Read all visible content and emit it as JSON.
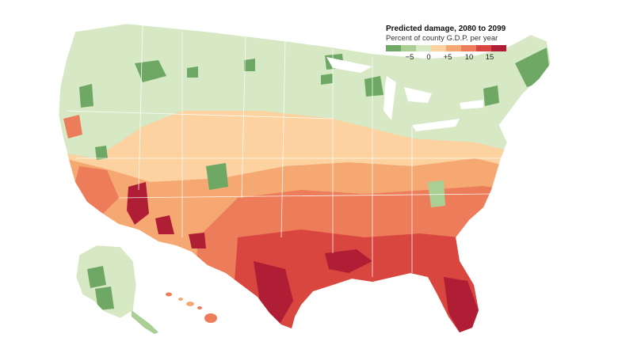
{
  "legend": {
    "title": "Predicted damage, 2080 to 2099",
    "subtitle": "Percent of county G.D.P. per year",
    "ticks": [
      "−5",
      "0",
      "+5",
      "10",
      "15"
    ],
    "scale_colors": [
      "#6ea864",
      "#a9cf95",
      "#d6e8c4",
      "#fbd2a0",
      "#f6a873",
      "#ec7c5a",
      "#d9453f",
      "#b01e36"
    ]
  },
  "map": {
    "region": "United States (counties)",
    "insets": [
      "Alaska",
      "Hawaii"
    ],
    "color_encoding": "percent of county GDP damage per year, green = negative (benefit), red = high damage"
  }
}
